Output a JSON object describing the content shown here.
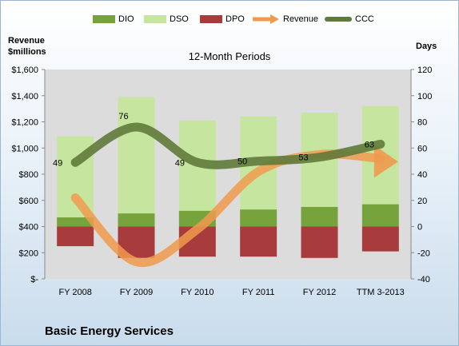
{
  "chart_data": {
    "type": "bar",
    "title": "12-Month Periods",
    "categories": [
      "FY 2008",
      "FY 2009",
      "FY 2010",
      "FY 2011",
      "FY 2012",
      "TTM 3-2013"
    ],
    "left_axis": {
      "label_line1": "Revenue",
      "label_line2": "$millions",
      "ylim": [
        0,
        1600
      ],
      "ticks": [
        "$-",
        "$200",
        "$400",
        "$600",
        "$800",
        "$1,000",
        "$1,200",
        "$1,400",
        "$1,600"
      ]
    },
    "right_axis": {
      "label": "Days",
      "ylim": [
        -40,
        120
      ],
      "ticks": [
        "-40",
        "-20",
        "0",
        "20",
        "40",
        "60",
        "80",
        "100",
        "120"
      ]
    },
    "series": [
      {
        "name": "DIO",
        "axis": "right",
        "values": [
          7,
          10,
          12,
          13,
          15,
          17
        ],
        "color": "#77a33c"
      },
      {
        "name": "DSO",
        "axis": "right",
        "values": [
          62,
          89,
          69,
          71,
          72,
          75
        ],
        "color": "#c6e6a0"
      },
      {
        "name": "DPO",
        "axis": "right",
        "values": [
          -15,
          -24,
          -23,
          -23,
          -24,
          -19
        ],
        "color": "#a83c3c"
      },
      {
        "name": "Revenue",
        "axis": "left",
        "values": [
          620,
          130,
          380,
          820,
          950,
          920
        ],
        "color": "#f09a4e"
      },
      {
        "name": "CCC",
        "axis": "right",
        "values": [
          49,
          76,
          49,
          50,
          53,
          63
        ],
        "color": "#5f7a3a"
      }
    ],
    "ccc_labels": [
      "49",
      "76",
      "49",
      "50",
      "53",
      "63"
    ],
    "grid": false,
    "legend": "top",
    "company": "Basic Energy Services"
  }
}
